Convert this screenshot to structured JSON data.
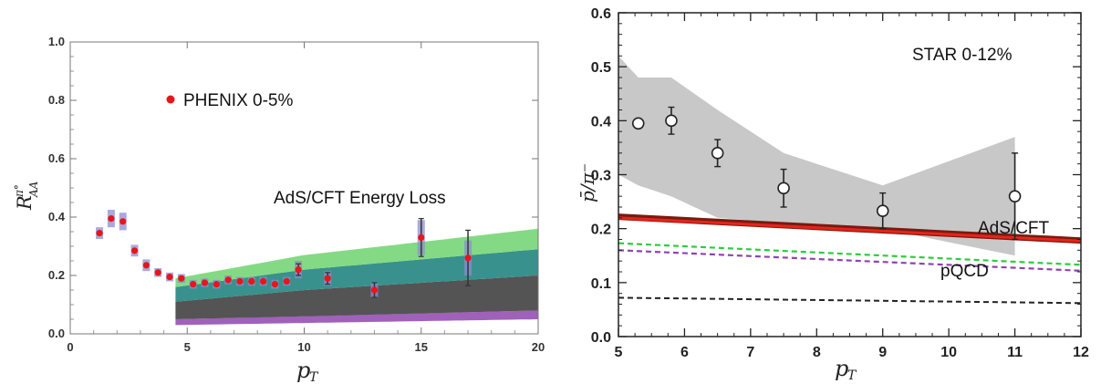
{
  "chart_data": [
    {
      "type": "scatter",
      "title": "",
      "xlabel": "p",
      "xlabel_sub": "T",
      "ylabel": "R",
      "ylabel_sub": "AA",
      "ylabel_sup": "π°",
      "xlim": [
        0,
        20
      ],
      "ylim": [
        0,
        1.0
      ],
      "xticks": [
        "0",
        "5",
        "10",
        "15",
        "20"
      ],
      "yticks": [
        "0.0",
        "0.2",
        "0.4",
        "0.6",
        "0.8",
        "1.0"
      ],
      "legend": {
        "label": "PHENIX 0-5%",
        "color": "#e8151b",
        "placement": "top-left"
      },
      "annotation": "AdS/CFT Energy Loss",
      "bands": [
        {
          "color": "#9b59b6",
          "x": [
            4.5,
            20
          ],
          "lower": [
            0.03,
            0.05
          ],
          "upper": [
            0.05,
            0.08
          ]
        },
        {
          "color": "#4b4b4b",
          "x": [
            4.5,
            10,
            20
          ],
          "lower": [
            0.05,
            0.06,
            0.08
          ],
          "upper": [
            0.11,
            0.15,
            0.2
          ]
        },
        {
          "color": "#2e8b87",
          "x": [
            4.5,
            10,
            20
          ],
          "lower": [
            0.11,
            0.15,
            0.2
          ],
          "upper": [
            0.16,
            0.22,
            0.29
          ]
        },
        {
          "color": "#7dd87d",
          "x": [
            4.5,
            10,
            20
          ],
          "lower": [
            0.16,
            0.22,
            0.29
          ],
          "upper": [
            0.19,
            0.27,
            0.36
          ]
        }
      ],
      "series": [
        {
          "name": "PHENIX 0-5%",
          "color": "#e8151b",
          "x": [
            1.25,
            1.75,
            2.25,
            2.75,
            3.25,
            3.75,
            4.25,
            4.75,
            5.25,
            5.75,
            6.25,
            6.75,
            7.25,
            7.75,
            8.25,
            8.75,
            9.25,
            9.75,
            11.0,
            13.0,
            15.0,
            17.0
          ],
          "y": [
            0.345,
            0.395,
            0.385,
            0.285,
            0.235,
            0.21,
            0.195,
            0.19,
            0.17,
            0.175,
            0.17,
            0.185,
            0.18,
            0.18,
            0.18,
            0.17,
            0.18,
            0.22,
            0.19,
            0.15,
            0.33,
            0.26
          ],
          "stat_err": [
            0.0,
            0.0,
            0.0,
            0.0,
            0.0,
            0.0,
            0.0,
            0.0,
            0.0,
            0.0,
            0.0,
            0.0,
            0.0,
            0.0,
            0.0,
            0.0,
            0.0,
            0.02,
            0.02,
            0.025,
            0.065,
            0.095
          ],
          "sys_err": [
            0.02,
            0.03,
            0.03,
            0.02,
            0.02,
            0.015,
            0.015,
            0.015,
            0.015,
            0.015,
            0.015,
            0.015,
            0.015,
            0.015,
            0.015,
            0.015,
            0.015,
            0.03,
            0.025,
            0.025,
            0.06,
            0.06
          ]
        }
      ]
    },
    {
      "type": "scatter",
      "title": "",
      "xlabel": "p",
      "xlabel_sub": "T",
      "ylabel": "p̄/π⁻",
      "xlim": [
        5,
        12
      ],
      "ylim": [
        0,
        0.6
      ],
      "xticks": [
        "5",
        "6",
        "7",
        "8",
        "9",
        "10",
        "11",
        "12"
      ],
      "yticks": [
        "0.0",
        "0.1",
        "0.2",
        "0.3",
        "0.4",
        "0.5",
        "0.6"
      ],
      "legend": {
        "label": "STAR 0-12%",
        "placement": "top-right"
      },
      "curve_labels": [
        "AdS/CFT",
        "pQCD"
      ],
      "band": {
        "color": "#c8c8c8",
        "x": [
          5.0,
          5.3,
          5.8,
          6.5,
          7.5,
          9.0,
          11.0
        ],
        "upper": [
          0.52,
          0.48,
          0.48,
          0.42,
          0.34,
          0.28,
          0.37
        ],
        "lower": [
          0.3,
          0.28,
          0.26,
          0.22,
          0.21,
          0.2,
          0.15
        ]
      },
      "series": [
        {
          "name": "STAR 0-12%",
          "marker": "open-circle",
          "x": [
            5.3,
            5.8,
            6.5,
            7.5,
            9.0,
            11.0
          ],
          "y": [
            0.395,
            0.4,
            0.34,
            0.275,
            0.233,
            0.26
          ],
          "err": [
            0.0,
            0.025,
            0.025,
            0.035,
            0.033,
            0.08
          ]
        }
      ],
      "lines": [
        {
          "name": "AdS/CFT",
          "color": "#7a1a10",
          "width": 7,
          "dash": "",
          "x": [
            5,
            12
          ],
          "y": [
            0.222,
            0.178
          ]
        },
        {
          "name": "AdS/CFT",
          "color": "#e8231b",
          "width": 3,
          "dash": "",
          "x": [
            5,
            12
          ],
          "y": [
            0.22,
            0.177
          ]
        },
        {
          "name": "pQCD",
          "color": "#2ecc40",
          "width": 2.2,
          "dash": "6,4",
          "x": [
            5,
            12
          ],
          "y": [
            0.173,
            0.133
          ]
        },
        {
          "name": "pQCD",
          "color": "#8e44ad",
          "width": 2.2,
          "dash": "6,4",
          "x": [
            5,
            12
          ],
          "y": [
            0.16,
            0.122
          ]
        },
        {
          "name": "",
          "color": "#222222",
          "width": 2,
          "dash": "6,4",
          "x": [
            5,
            12
          ],
          "y": [
            0.072,
            0.062
          ]
        }
      ]
    }
  ]
}
